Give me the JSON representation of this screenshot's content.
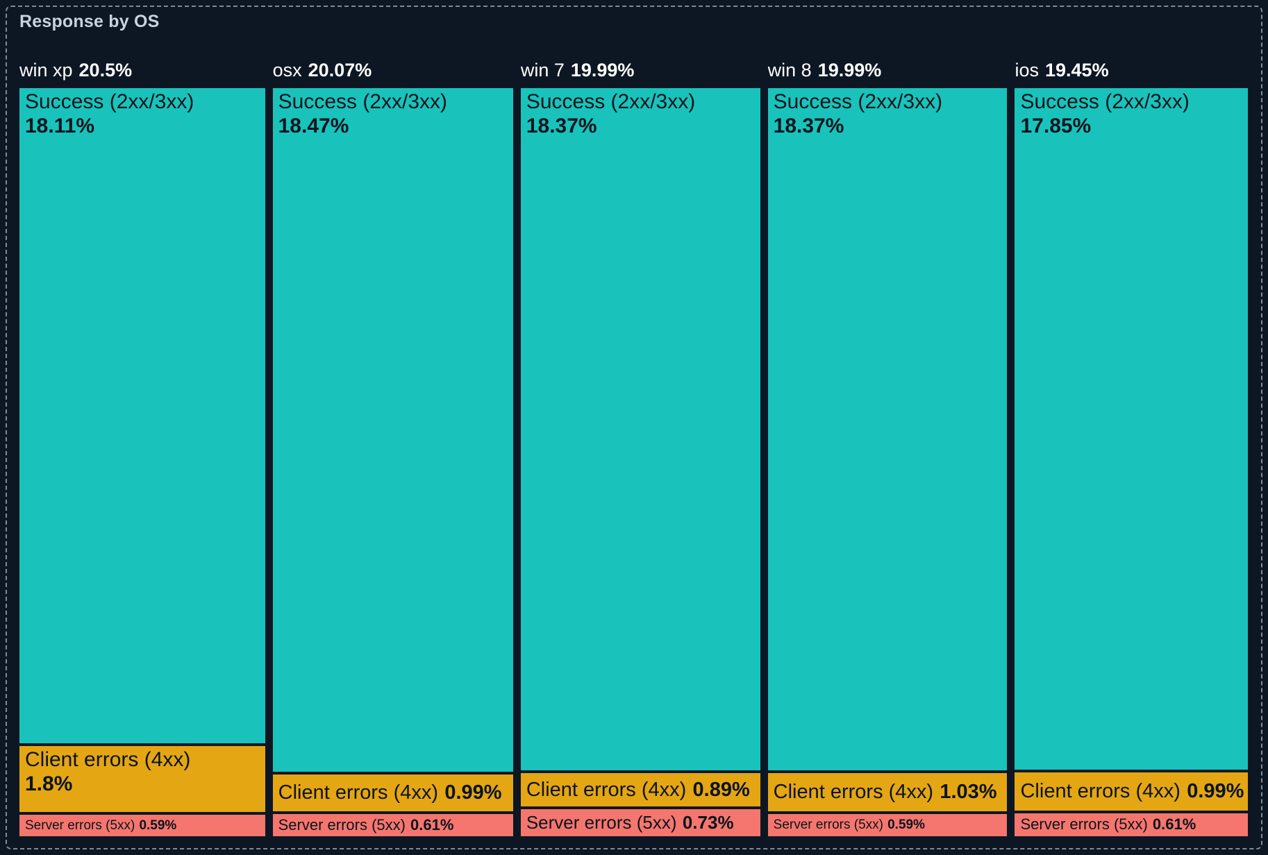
{
  "panel": {
    "title": "Response by OS"
  },
  "colors": {
    "background": "#0D1724",
    "panel_border": "#7E8CA0",
    "title_text": "#C9D2DF",
    "header_text": "#FFFFFF",
    "tile_text": "#0A141D",
    "success_tile": "#19C3BB",
    "client_errors_tile": "#E5A613",
    "server_errors_tile": "#F4766E"
  },
  "chart_data": {
    "type": "treemap",
    "title": "Response by OS",
    "orientation": "columns",
    "value_unit": "%",
    "legend": "none",
    "groups": [
      {
        "label": "win xp",
        "total": "20.5%",
        "value": 20.5,
        "segments": [
          {
            "name": "Success (2xx/3xx)",
            "pct": "18.11%",
            "value": 18.11
          },
          {
            "name": "Client errors (4xx)",
            "pct": "1.8%",
            "value": 1.8
          },
          {
            "name": "Server errors (5xx)",
            "pct": "0.59%",
            "value": 0.59
          }
        ]
      },
      {
        "label": "osx",
        "total": "20.07%",
        "value": 20.07,
        "segments": [
          {
            "name": "Success (2xx/3xx)",
            "pct": "18.47%",
            "value": 18.47
          },
          {
            "name": "Client errors (4xx)",
            "pct": "0.99%",
            "value": 0.99
          },
          {
            "name": "Server errors (5xx)",
            "pct": "0.61%",
            "value": 0.61
          }
        ]
      },
      {
        "label": "win 7",
        "total": "19.99%",
        "value": 19.99,
        "segments": [
          {
            "name": "Success (2xx/3xx)",
            "pct": "18.37%",
            "value": 18.37
          },
          {
            "name": "Client errors (4xx)",
            "pct": "0.89%",
            "value": 0.89
          },
          {
            "name": "Server errors (5xx)",
            "pct": "0.73%",
            "value": 0.73
          }
        ]
      },
      {
        "label": "win 8",
        "total": "19.99%",
        "value": 19.99,
        "segments": [
          {
            "name": "Success (2xx/3xx)",
            "pct": "18.37%",
            "value": 18.37
          },
          {
            "name": "Client errors (4xx)",
            "pct": "1.03%",
            "value": 1.03
          },
          {
            "name": "Server errors (5xx)",
            "pct": "0.59%",
            "value": 0.59
          }
        ]
      },
      {
        "label": "ios",
        "total": "19.45%",
        "value": 19.45,
        "segments": [
          {
            "name": "Success (2xx/3xx)",
            "pct": "17.85%",
            "value": 17.85
          },
          {
            "name": "Client errors (4xx)",
            "pct": "0.99%",
            "value": 0.99
          },
          {
            "name": "Server errors (5xx)",
            "pct": "0.61%",
            "value": 0.61
          }
        ]
      }
    ]
  }
}
